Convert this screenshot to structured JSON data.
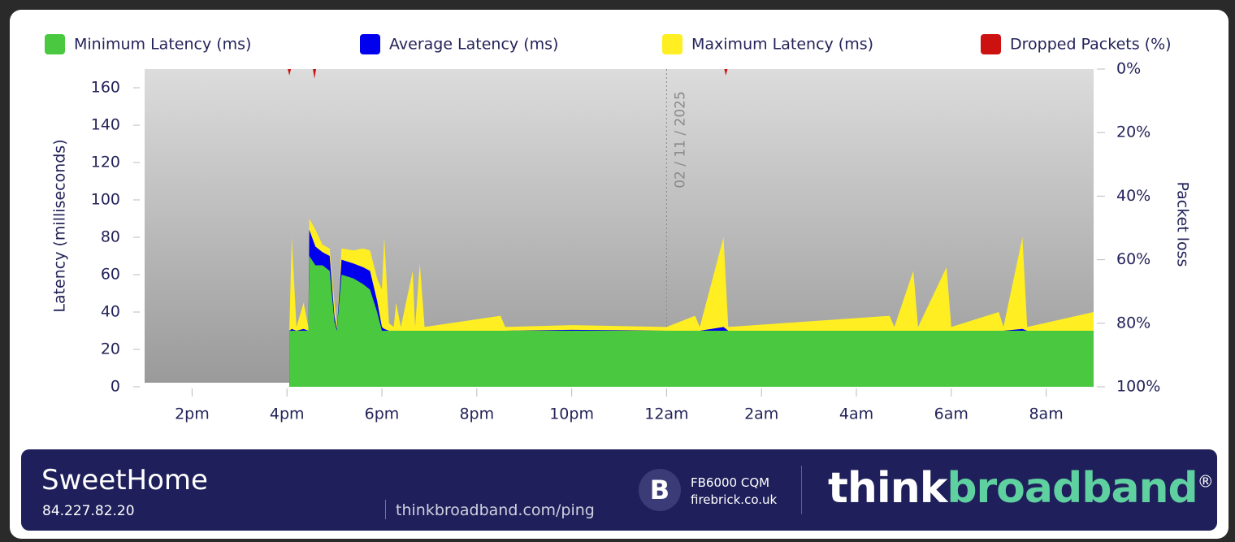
{
  "chart_data": {
    "type": "area",
    "x_unit": "hours",
    "xlim": [
      13,
      33
    ],
    "xticks": [
      {
        "value": 14,
        "label": "2pm"
      },
      {
        "value": 16,
        "label": "4pm"
      },
      {
        "value": 18,
        "label": "6pm"
      },
      {
        "value": 20,
        "label": "8pm"
      },
      {
        "value": 22,
        "label": "10pm"
      },
      {
        "value": 24,
        "label": "12am"
      },
      {
        "value": 26,
        "label": "2am"
      },
      {
        "value": 28,
        "label": "4am"
      },
      {
        "value": 30,
        "label": "6am"
      },
      {
        "value": 32,
        "label": "8am"
      }
    ],
    "ylim": [
      0,
      170
    ],
    "yticks": [
      0,
      20,
      40,
      60,
      80,
      100,
      120,
      140,
      160
    ],
    "y2lim": [
      100,
      0
    ],
    "y2ticks": [
      {
        "value": 0,
        "label": "0%"
      },
      {
        "value": 20,
        "label": "20%"
      },
      {
        "value": 40,
        "label": "40%"
      },
      {
        "value": 60,
        "label": "60%"
      },
      {
        "value": 80,
        "label": "80%"
      },
      {
        "value": 100,
        "label": "100%"
      }
    ],
    "ylabel": "Latency  (milliseconds)",
    "y2label": "Packet loss",
    "annotation": {
      "x": 24,
      "label": "02 / 11 / 2025"
    },
    "x": [
      16.05,
      16.1,
      16.2,
      16.35,
      16.45,
      16.47,
      16.6,
      16.75,
      16.9,
      17.0,
      17.05,
      17.15,
      17.4,
      17.6,
      17.75,
      17.9,
      18.0,
      18.05,
      18.15,
      18.25,
      18.3,
      18.4,
      18.65,
      18.7,
      18.8,
      18.9,
      20.5,
      20.6,
      22,
      24,
      24.6,
      24.7,
      25.2,
      25.3,
      28.7,
      28.8,
      29.2,
      29.3,
      29.9,
      30.0,
      31.0,
      31.1,
      31.5,
      31.6,
      33
    ],
    "series": [
      {
        "name": "Maximum Latency (ms)",
        "color": "#ffee22",
        "values": [
          30,
          80,
          32,
          45,
          32,
          90,
          84,
          76,
          74,
          45,
          33,
          74,
          73,
          74,
          73,
          58,
          52,
          80,
          34,
          32,
          45,
          32,
          62,
          32,
          66,
          32,
          38,
          32,
          33,
          32,
          38,
          32,
          80,
          32,
          38,
          32,
          62,
          32,
          64,
          32,
          40,
          32,
          80,
          32,
          40
        ]
      },
      {
        "name": "Average Latency (ms)",
        "color": "#0000ee",
        "values": [
          30,
          31,
          30,
          31,
          30,
          84,
          75,
          72,
          70,
          38,
          31,
          68,
          66,
          64,
          62,
          46,
          32,
          31,
          30,
          30,
          30,
          30,
          30,
          30,
          30,
          30,
          30,
          30,
          30.5,
          30,
          30,
          30,
          32,
          30,
          30,
          30,
          30,
          30,
          30,
          30,
          30,
          30,
          31,
          30,
          30
        ]
      },
      {
        "name": "Minimum Latency (ms)",
        "color": "#4ac940",
        "values": [
          30,
          30,
          30,
          30,
          30,
          70,
          65,
          65,
          62,
          35,
          30,
          60,
          58,
          55,
          52,
          40,
          30,
          30,
          30,
          30,
          30,
          30,
          30,
          30,
          30,
          30,
          30,
          30,
          30,
          30,
          30,
          30,
          30,
          30,
          30,
          30,
          30,
          30,
          30,
          30,
          30,
          30,
          30,
          30,
          30
        ]
      },
      {
        "name": "Dropped Packets (%)",
        "color": "#cc1111",
        "axis": "y2",
        "x": [
          16.05,
          16.58,
          25.25
        ],
        "values": [
          2,
          3,
          2
        ]
      }
    ]
  },
  "footer": {
    "name": "SweetHome",
    "ip": "84.227.82.20",
    "url": "thinkbroadband.com/ping",
    "sponsor_model": "FB6000 CQM",
    "sponsor_site": "firebrick.co.uk",
    "brand_a": "think",
    "brand_b": "broadband",
    "brand_mark": "®"
  }
}
